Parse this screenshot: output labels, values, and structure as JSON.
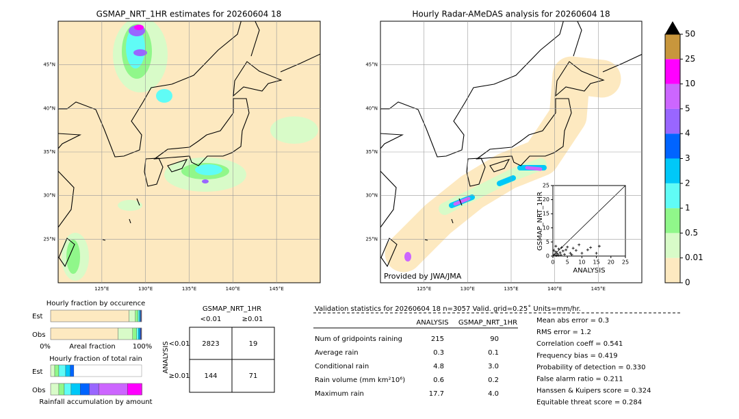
{
  "maps": [
    {
      "title": "GSMAP_NRT_1HR estimates for 20260604 18",
      "xlim": [
        120,
        150
      ],
      "ylim": [
        20,
        50
      ],
      "xticks": [
        {
          "value": 125,
          "label": "125°E"
        },
        {
          "value": 130,
          "label": "130°E"
        },
        {
          "value": 135,
          "label": "135°E"
        },
        {
          "value": 140,
          "label": "140°E"
        },
        {
          "value": 145,
          "label": "145°E"
        }
      ],
      "yticks": [
        {
          "value": 25,
          "label": "25°N"
        },
        {
          "value": 30,
          "label": "30°N"
        },
        {
          "value": 35,
          "label": "35°N"
        },
        {
          "value": 40,
          "label": "40°N"
        },
        {
          "value": 45,
          "label": "45°N"
        }
      ]
    },
    {
      "title": "Hourly Radar-AMeDAS analysis for 20260604 18",
      "xlim": [
        120,
        150
      ],
      "ylim": [
        20,
        50
      ],
      "xticks": [
        {
          "value": 125,
          "label": "125°E"
        },
        {
          "value": 130,
          "label": "130°E"
        },
        {
          "value": 135,
          "label": "135°E"
        },
        {
          "value": 140,
          "label": "140°E"
        },
        {
          "value": 145,
          "label": "145°E"
        }
      ],
      "yticks": [
        {
          "value": 25,
          "label": "25°N"
        },
        {
          "value": 30,
          "label": "30°N"
        },
        {
          "value": 35,
          "label": "35°N"
        },
        {
          "value": 40,
          "label": "40°N"
        },
        {
          "value": 45,
          "label": "45°N"
        }
      ],
      "credit": "Provided by JWA/JMA"
    }
  ],
  "colorbar": {
    "levels": [
      0,
      0.01,
      0.5,
      1,
      2,
      3,
      4,
      5,
      10,
      25,
      50
    ],
    "colors": [
      "#fde9c0",
      "#d8fbc8",
      "#90f78a",
      "#60fcf6",
      "#00c8f8",
      "#0064ff",
      "#9966ff",
      "#cc66ff",
      "#ff00ff",
      "#c8963c"
    ],
    "extend_color": "#000000"
  },
  "scatter": {
    "xlabel": "ANALYSIS",
    "ylabel": "GSMAP_NRT_1HR",
    "xlim": [
      0,
      25
    ],
    "ylim": [
      0,
      25
    ],
    "xticks": [
      0,
      5,
      10,
      15,
      20,
      25
    ],
    "yticks": [
      0,
      5,
      10,
      15,
      20,
      25
    ],
    "x": [
      0.5,
      1,
      1.5,
      2,
      2.5,
      3,
      1,
      2,
      3.5,
      4,
      5,
      6,
      7,
      8,
      9,
      10,
      12,
      13,
      15,
      16,
      0.3,
      1.2,
      2.8,
      4.5,
      6.5
    ],
    "y": [
      0.5,
      1.5,
      0.8,
      2.5,
      1.2,
      3,
      3.5,
      0.3,
      1.8,
      0.6,
      3.2,
      1,
      2.8,
      2,
      4,
      1,
      2.2,
      3,
      1,
      3.5,
      2,
      0.2,
      0.4,
      2.2,
      0.5
    ]
  },
  "occurrence": {
    "title": "Hourly fraction by occurence",
    "row_labels": [
      "Est",
      "Obs"
    ],
    "axis_labels": [
      "0%",
      "Areal fraction",
      "100%"
    ],
    "est": [
      0.86,
      0.07,
      0.03,
      0.015,
      0.01,
      0.005,
      0.005,
      0.003,
      0.002,
      0
    ],
    "obs": [
      0.74,
      0.16,
      0.045,
      0.02,
      0.015,
      0.01,
      0.004,
      0.003,
      0.002,
      0.001
    ]
  },
  "accumulation": {
    "title": "Hourly fraction of total rain",
    "row_labels": [
      "Est",
      "Obs"
    ],
    "footer": "Rainfall accumulation by amount",
    "est": [
      0,
      0.045,
      0.045,
      0.075,
      0.05,
      0.04,
      0,
      0,
      0,
      0
    ],
    "obs": [
      0,
      0.09,
      0.06,
      0.075,
      0.1,
      0.1,
      0.105,
      0.315,
      0.16,
      0
    ]
  },
  "contingency": {
    "title": "GSMAP_NRT_1HR",
    "col_labels": [
      "<0.01",
      "≥0.01"
    ],
    "row_title": "ANALYSIS",
    "row_labels": [
      "<0.01",
      "≥0.01"
    ],
    "cells": [
      [
        2823,
        19
      ],
      [
        144,
        71
      ]
    ]
  },
  "validation": {
    "header": "Validation statistics for 20260604 18  n=3057 Valid. grid=0.25˚ Units=mm/hr.",
    "columns": [
      "ANALYSIS",
      "GSMAP_NRT_1HR"
    ],
    "rows": [
      [
        "Num of gridpoints raining",
        "215",
        "90"
      ],
      [
        "Average rain",
        "0.3",
        "0.1"
      ],
      [
        "Conditional rain",
        "4.8",
        "3.0"
      ],
      [
        "Rain volume (mm km²10⁶)",
        "0.6",
        "0.2"
      ],
      [
        "Maximum rain",
        "17.7",
        "4.0"
      ]
    ],
    "scores": [
      "Mean abs error =    0.3",
      "RMS error =    1.2",
      "Correlation coeff =  0.541",
      "Frequency bias =  0.419",
      "Probability of detection =  0.330",
      "False alarm ratio =  0.211",
      "Hanssen & Kuipers score =  0.324",
      "Equitable threat score =  0.284"
    ]
  }
}
